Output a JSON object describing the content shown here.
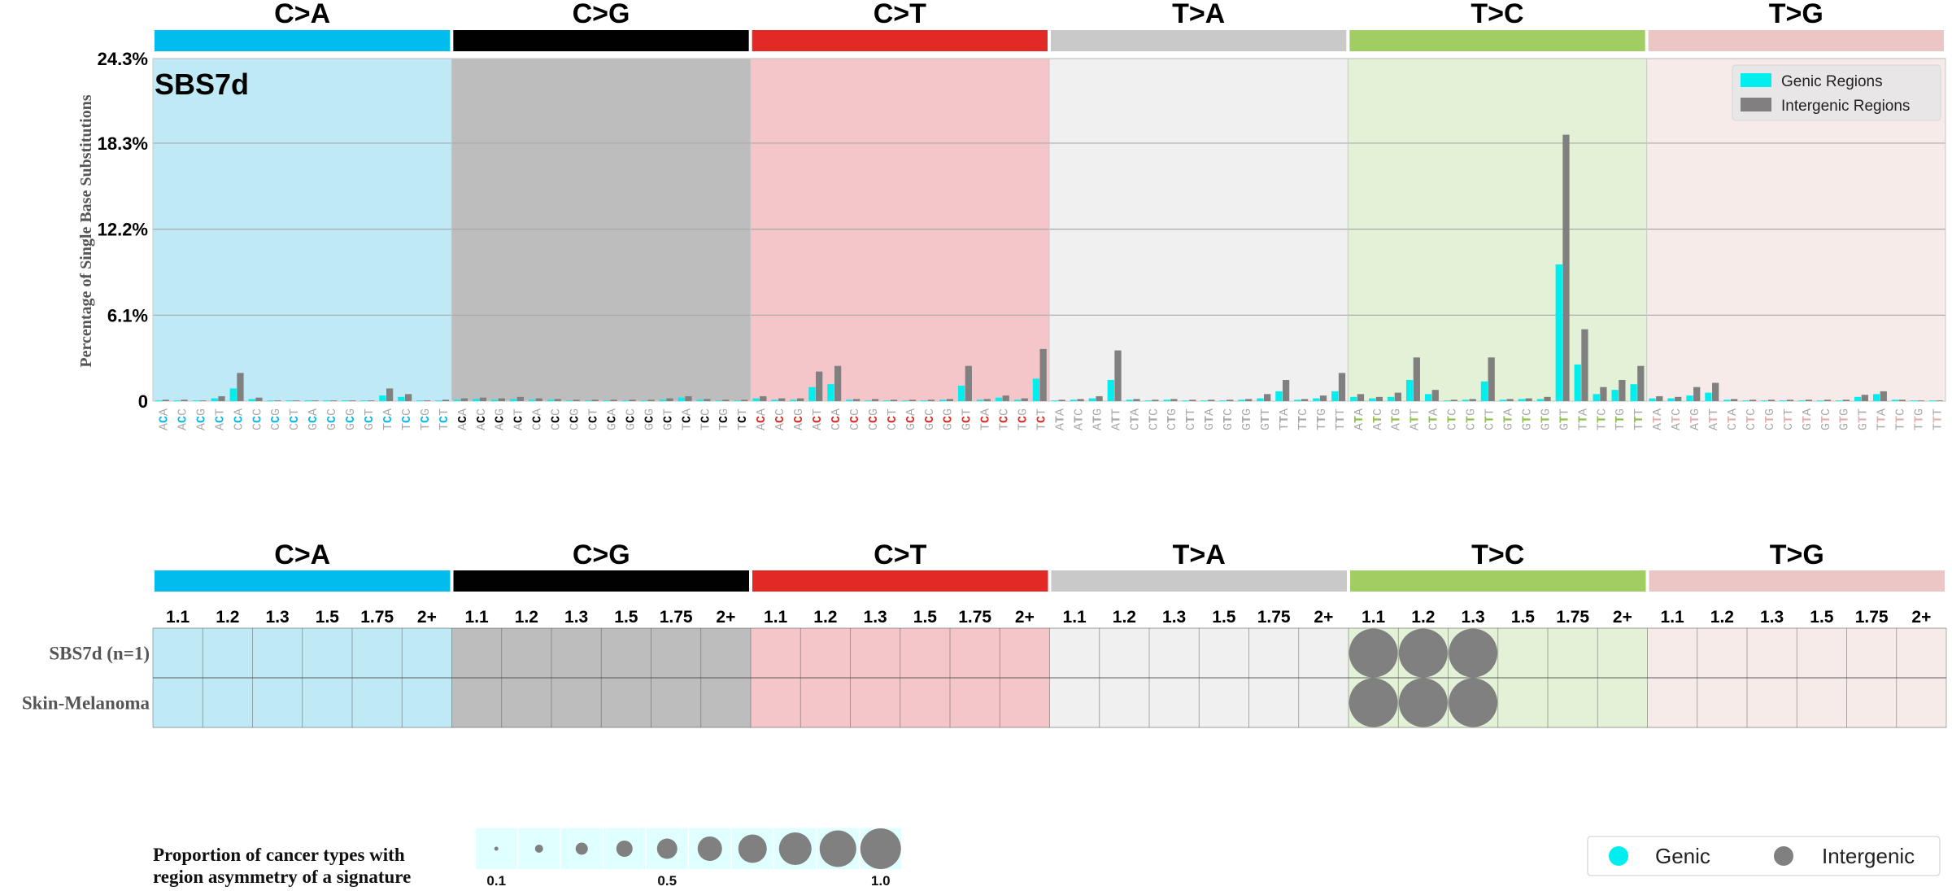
{
  "colors": {
    "mutation_bars": [
      "#03bcee",
      "#010101",
      "#e32926",
      "#cac9c9",
      "#a1ce63",
      "#ebc6c4"
    ],
    "panel_bg": [
      "#bfe9f5",
      "#bdbdbd",
      "#f5c6c9",
      "#f0f0f0",
      "#e3f2d6",
      "#f7ebea"
    ],
    "tri_base": [
      "#03bcee",
      "#010101",
      "#e32926",
      "#aaaaaa",
      "#8dc34a",
      "#e8b0ad"
    ],
    "genic": "#00eeee",
    "intergenic": "#808080",
    "context_grey": "#a8a8a8",
    "legend_circle_bg": "#e0ffff"
  },
  "chart_data": [
    {
      "type": "bar",
      "title": "SBS7d",
      "ylabel": "Percentage of Single Base Substitutions",
      "ylim": [
        0,
        24.3
      ],
      "yticks": [
        {
          "value": 0,
          "label": "0"
        },
        {
          "value": 6.1,
          "label": "6.1%"
        },
        {
          "value": 12.2,
          "label": "12.2%"
        },
        {
          "value": 18.3,
          "label": "18.3%"
        },
        {
          "value": 24.3,
          "label": "24.3%"
        }
      ],
      "grid": true,
      "legend": "top-right",
      "mutation_types": [
        "C>A",
        "C>G",
        "C>T",
        "T>A",
        "T>C",
        "T>G"
      ],
      "categories": [
        "ACA",
        "ACC",
        "ACG",
        "ACT",
        "CCA",
        "CCC",
        "CCG",
        "CCT",
        "GCA",
        "GCC",
        "GCG",
        "GCT",
        "TCA",
        "TCC",
        "TCG",
        "TCT",
        "ACA",
        "ACC",
        "ACG",
        "ACT",
        "CCA",
        "CCC",
        "CCG",
        "CCT",
        "GCA",
        "GCC",
        "GCG",
        "GCT",
        "TCA",
        "TCC",
        "TCG",
        "TCT",
        "ACA",
        "ACC",
        "ACG",
        "ACT",
        "CCA",
        "CCC",
        "CCG",
        "CCT",
        "GCA",
        "GCC",
        "GCG",
        "GCT",
        "TCA",
        "TCC",
        "TCG",
        "TCT",
        "ATA",
        "ATC",
        "ATG",
        "ATT",
        "CTA",
        "CTC",
        "CTG",
        "CTT",
        "GTA",
        "GTC",
        "GTG",
        "GTT",
        "TTA",
        "TTC",
        "TTG",
        "TTT",
        "ATA",
        "ATC",
        "ATG",
        "ATT",
        "CTA",
        "CTC",
        "CTG",
        "CTT",
        "GTA",
        "GTC",
        "GTG",
        "GTT",
        "TTA",
        "TTC",
        "TTG",
        "TTT",
        "ATA",
        "ATC",
        "ATG",
        "ATT",
        "CTA",
        "CTC",
        "CTG",
        "CTT",
        "GTA",
        "GTC",
        "GTG",
        "GTT",
        "TTA",
        "TTC",
        "TTG",
        "TTT"
      ],
      "series": [
        {
          "name": "Genic Regions",
          "values": [
            0.05,
            0.05,
            0.05,
            0.2,
            0.9,
            0.15,
            0.05,
            0.05,
            0.05,
            0.05,
            0.05,
            0.05,
            0.4,
            0.3,
            0.05,
            0.05,
            0.1,
            0.15,
            0.1,
            0.15,
            0.1,
            0.1,
            0.05,
            0.05,
            0.05,
            0.05,
            0.05,
            0.1,
            0.25,
            0.1,
            0.05,
            0.05,
            0.2,
            0.1,
            0.1,
            1.0,
            1.2,
            0.1,
            0.05,
            0.05,
            0.05,
            0.05,
            0.1,
            1.1,
            0.1,
            0.25,
            0.1,
            1.6,
            0.05,
            0.1,
            0.2,
            1.5,
            0.1,
            0.05,
            0.1,
            0.05,
            0.05,
            0.05,
            0.1,
            0.2,
            0.7,
            0.1,
            0.2,
            0.7,
            0.3,
            0.2,
            0.3,
            1.5,
            0.5,
            0.05,
            0.1,
            1.4,
            0.1,
            0.15,
            0.15,
            9.7,
            2.6,
            0.5,
            0.8,
            1.2,
            0.2,
            0.2,
            0.4,
            0.6,
            0.1,
            0.05,
            0.05,
            0.05,
            0.05,
            0.05,
            0.05,
            0.3,
            0.5,
            0.1,
            0.05,
            0.05
          ]
        },
        {
          "name": "Intergenic Regions",
          "values": [
            0.1,
            0.1,
            0.05,
            0.35,
            2.0,
            0.25,
            0.05,
            0.05,
            0.05,
            0.05,
            0.05,
            0.05,
            0.9,
            0.5,
            0.05,
            0.1,
            0.2,
            0.25,
            0.2,
            0.3,
            0.2,
            0.15,
            0.1,
            0.1,
            0.1,
            0.1,
            0.1,
            0.2,
            0.35,
            0.15,
            0.1,
            0.1,
            0.35,
            0.2,
            0.2,
            2.1,
            2.5,
            0.15,
            0.15,
            0.1,
            0.1,
            0.1,
            0.15,
            2.5,
            0.15,
            0.4,
            0.2,
            3.7,
            0.1,
            0.15,
            0.35,
            3.6,
            0.15,
            0.1,
            0.15,
            0.1,
            0.1,
            0.1,
            0.15,
            0.5,
            1.5,
            0.15,
            0.4,
            2.0,
            0.5,
            0.3,
            0.6,
            3.1,
            0.8,
            0.1,
            0.15,
            3.1,
            0.15,
            0.2,
            0.3,
            18.9,
            5.1,
            1.0,
            1.5,
            2.5,
            0.35,
            0.3,
            1.0,
            1.3,
            0.15,
            0.1,
            0.1,
            0.1,
            0.1,
            0.1,
            0.1,
            0.45,
            0.7,
            0.1,
            0.05,
            0.05
          ]
        }
      ]
    },
    {
      "type": "heatmap",
      "mutation_types": [
        "C>A",
        "C>G",
        "C>T",
        "T>A",
        "T>C",
        "T>G"
      ],
      "column_labels": [
        "1.1",
        "1.2",
        "1.3",
        "1.5",
        "1.75",
        "2+"
      ],
      "rows": [
        "SBS7d (n=1)",
        "Skin-Melanoma"
      ],
      "cells": [
        {
          "row": 0,
          "mutation_type": "T>C",
          "column": "1.1",
          "region": "Intergenic",
          "proportion": 1.0
        },
        {
          "row": 0,
          "mutation_type": "T>C",
          "column": "1.2",
          "region": "Intergenic",
          "proportion": 1.0
        },
        {
          "row": 0,
          "mutation_type": "T>C",
          "column": "1.3",
          "region": "Intergenic",
          "proportion": 1.0
        },
        {
          "row": 1,
          "mutation_type": "T>C",
          "column": "1.1",
          "region": "Intergenic",
          "proportion": 1.0
        },
        {
          "row": 1,
          "mutation_type": "T>C",
          "column": "1.2",
          "region": "Intergenic",
          "proportion": 1.0
        },
        {
          "row": 1,
          "mutation_type": "T>C",
          "column": "1.3",
          "region": "Intergenic",
          "proportion": 1.0
        }
      ]
    }
  ],
  "size_legend": {
    "title_line1": "Proportion of cancer types with",
    "title_line2": "region asymmetry of a signature",
    "values": [
      0.1,
      0.2,
      0.3,
      0.4,
      0.5,
      0.6,
      0.7,
      0.8,
      0.9,
      1.0
    ],
    "tick_labels": [
      {
        "value": 0.1,
        "label": "0.1"
      },
      {
        "value": 0.5,
        "label": "0.5"
      },
      {
        "value": 1.0,
        "label": "1.0"
      }
    ]
  },
  "region_legend": {
    "genic_label": "Genic",
    "intergenic_label": "Intergenic"
  }
}
